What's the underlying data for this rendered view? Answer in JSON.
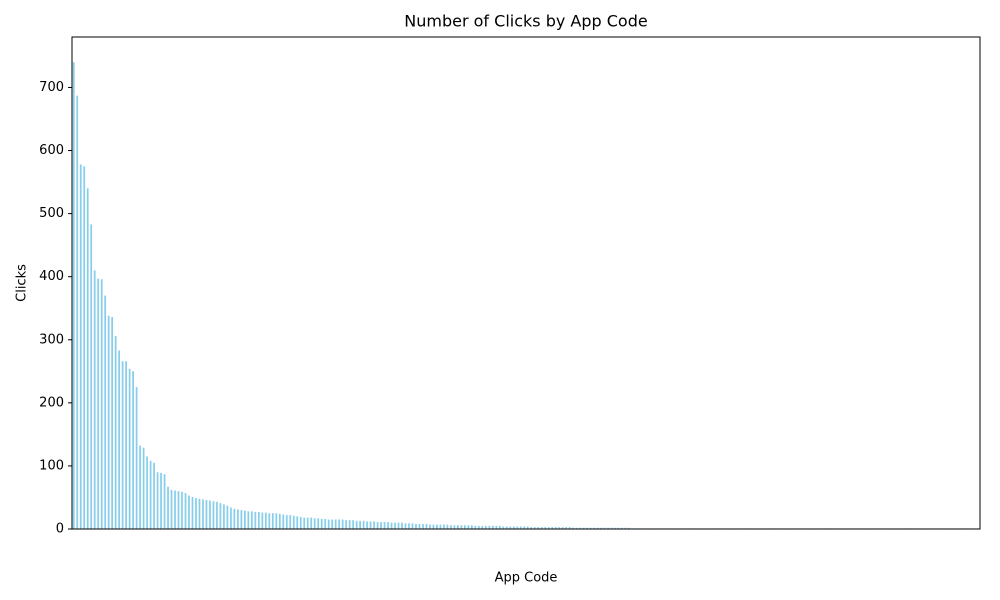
{
  "chart_data": {
    "type": "bar",
    "title": "Number of Clicks by App Code",
    "x_label": "App Code",
    "y_label": "Clicks",
    "color": "#87ceeb",
    "categories": [
      null,
      null,
      null,
      null,
      null,
      null,
      null,
      null,
      null,
      null,
      null,
      null,
      null,
      null,
      null,
      null,
      null,
      null,
      null,
      null,
      null,
      null,
      null,
      null,
      null,
      null,
      null,
      null,
      null,
      null,
      null,
      null,
      null,
      null,
      null,
      null,
      null,
      null,
      null,
      null,
      null,
      null,
      null,
      null,
      null,
      null,
      null,
      null,
      null,
      null,
      null,
      null,
      null,
      null,
      null,
      null,
      null,
      null,
      null,
      null,
      null,
      null,
      null,
      null,
      null,
      null,
      null,
      null,
      null,
      null,
      null,
      null,
      null,
      null,
      null,
      null,
      null,
      null,
      null,
      null,
      null,
      null,
      null,
      null,
      null,
      null,
      null,
      null,
      null,
      null,
      null,
      null,
      null,
      null,
      null,
      null,
      null,
      null,
      null,
      null,
      null,
      null,
      null,
      null,
      null,
      null,
      null,
      null,
      null,
      null,
      null,
      null,
      null,
      null,
      null,
      null,
      null,
      null,
      null,
      null,
      null,
      null,
      null,
      null,
      null,
      null,
      null,
      null,
      null,
      null,
      null,
      null,
      null,
      null,
      null,
      null,
      null,
      null,
      null,
      null,
      null,
      null,
      null,
      null,
      null,
      null,
      null,
      null,
      null,
      null,
      null,
      null,
      null,
      null,
      null,
      null,
      null,
      null,
      null,
      null,
      null,
      null,
      null,
      null,
      null,
      null,
      null,
      null,
      null,
      null,
      null,
      null,
      null,
      null,
      null,
      null,
      null,
      null,
      null,
      null,
      null,
      null,
      null,
      null,
      null,
      null,
      null,
      null,
      null,
      null,
      null,
      null,
      null,
      null,
      null,
      null,
      null,
      null,
      null,
      null,
      null,
      null,
      null,
      null,
      null,
      null,
      null,
      null,
      null,
      null,
      null,
      null,
      null,
      null,
      null,
      null,
      null,
      null,
      null,
      null,
      null,
      null,
      null,
      null,
      null,
      null,
      null,
      null,
      null,
      null,
      null,
      null,
      null,
      null,
      null,
      null,
      null,
      null,
      null,
      null,
      null,
      null,
      null,
      null,
      null,
      null,
      null,
      null,
      null,
      null,
      null,
      null,
      null,
      null,
      null,
      null,
      null,
      null,
      null,
      null
    ],
    "values": [
      740,
      687,
      578,
      575,
      540,
      483,
      410,
      397,
      396,
      370,
      338,
      336,
      306,
      283,
      266,
      266,
      254,
      250,
      225,
      132,
      129,
      115,
      108,
      105,
      90,
      89,
      87,
      67,
      62,
      61,
      60,
      59,
      57,
      53,
      51,
      49,
      48,
      47,
      46,
      45,
      44,
      43,
      41,
      39,
      37,
      34,
      32,
      31,
      30,
      29,
      28,
      28,
      27,
      27,
      26,
      26,
      25,
      25,
      25,
      24,
      23,
      22,
      22,
      21,
      20,
      19,
      18,
      18,
      18,
      17,
      17,
      16,
      16,
      15,
      15,
      15,
      15,
      15,
      14,
      14,
      14,
      13,
      13,
      13,
      12,
      12,
      12,
      11,
      11,
      11,
      11,
      10,
      10,
      10,
      10,
      9,
      9,
      9,
      8,
      8,
      8,
      8,
      7,
      7,
      7,
      7,
      7,
      7,
      6,
      6,
      6,
      6,
      6,
      6,
      6,
      5,
      5,
      5,
      5,
      5,
      5,
      5,
      5,
      4,
      4,
      4,
      4,
      4,
      4,
      4,
      4,
      3,
      3,
      3,
      3,
      3,
      3,
      3,
      3,
      3,
      3,
      3,
      3,
      2,
      2,
      2,
      2,
      2,
      2,
      2,
      2,
      2,
      2,
      2,
      2,
      2,
      2,
      2,
      2,
      2,
      1,
      1,
      1,
      1,
      1,
      1,
      1,
      1,
      1,
      1,
      1,
      1,
      1,
      1,
      1,
      1,
      1,
      1,
      1,
      1,
      1,
      1,
      1,
      1,
      1,
      1,
      1,
      1,
      1,
      1,
      1,
      1,
      1,
      1,
      1,
      1,
      1,
      1,
      1,
      1,
      1,
      1,
      1,
      1,
      1,
      1,
      1,
      1,
      1,
      1,
      1,
      1,
      1,
      1,
      1,
      1,
      1,
      1,
      1,
      1,
      1,
      1,
      1,
      1,
      1,
      1,
      1,
      1,
      1,
      1,
      1,
      1,
      1,
      1,
      1,
      1,
      1,
      1,
      1,
      1,
      1,
      1,
      1,
      1,
      1,
      1,
      1,
      1,
      1,
      1,
      1,
      1,
      1,
      1,
      1,
      1,
      1,
      1,
      1,
      1
    ],
    "ylim": [
      0,
      780
    ],
    "yticks": [
      0,
      100,
      200,
      300,
      400,
      500,
      600,
      700
    ]
  }
}
